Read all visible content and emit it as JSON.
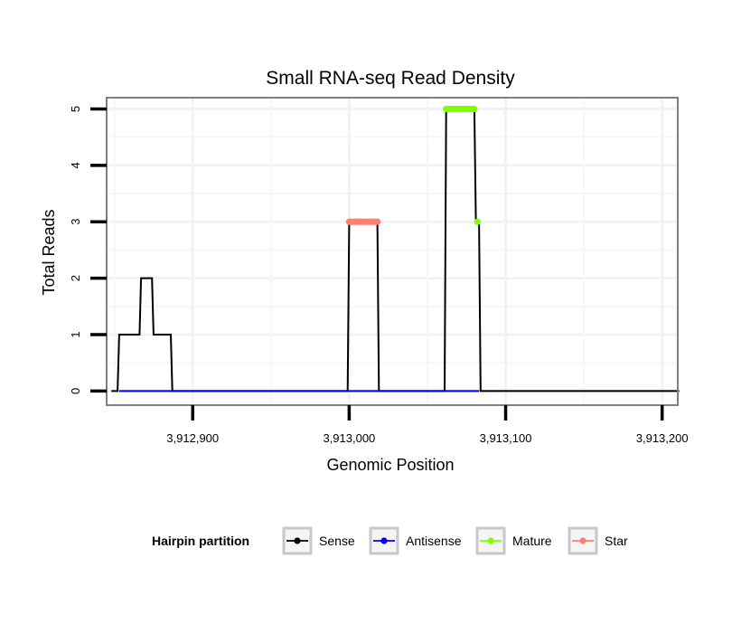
{
  "chart_data": {
    "type": "line",
    "title": "Small RNA-seq Read Density",
    "xlabel": "Genomic Position",
    "ylabel": "Total Reads",
    "xlim": [
      3912845,
      3913210
    ],
    "ylim": [
      -0.25,
      5.2
    ],
    "x_ticks": [
      3912900,
      3913000,
      3913100,
      3913200
    ],
    "x_tick_labels": [
      "3,912,900",
      "3,913,000",
      "3,913,100",
      "3,913,200"
    ],
    "y_ticks": [
      0,
      1,
      2,
      3,
      4,
      5
    ],
    "y_tick_labels": [
      "0",
      "1",
      "2",
      "3",
      "4",
      "5"
    ],
    "grid": true,
    "legend": {
      "title": "Hairpin partition",
      "position": "bottom",
      "entries": [
        {
          "name": "Sense",
          "color": "#000000"
        },
        {
          "name": "Antisense",
          "color": "#0000ff"
        },
        {
          "name": "Mature",
          "color": "#7fff00"
        },
        {
          "name": "Star",
          "color": "#fa8072"
        }
      ]
    },
    "series": [
      {
        "name": "Sense",
        "color": "#000000",
        "x": [
          3912848,
          3912852,
          3912853,
          3912866,
          3912867,
          3912874,
          3912875,
          3912886,
          3912887,
          3912999,
          3913000,
          3913018,
          3913019,
          3913061,
          3913062,
          3913080,
          3913081,
          3913083,
          3913084,
          3913211
        ],
        "y": [
          0,
          0,
          1,
          1,
          2,
          2,
          1,
          1,
          0,
          0,
          3,
          3,
          0,
          0,
          5,
          5,
          3,
          3,
          0,
          0
        ]
      },
      {
        "name": "Antisense",
        "color": "#0000ff",
        "x": [
          3912853,
          3912886,
          3913000,
          3913018,
          3913062,
          3913083
        ],
        "y": [
          0,
          0,
          0,
          0,
          0,
          0
        ]
      },
      {
        "name": "Mature",
        "color": "#7fff00",
        "x": [
          3913062,
          3913063,
          3913064,
          3913065,
          3913066,
          3913067,
          3913068,
          3913069,
          3913070,
          3913071,
          3913072,
          3913073,
          3913074,
          3913075,
          3913076,
          3913077,
          3913078,
          3913079,
          3913080,
          3913082
        ],
        "y": [
          5,
          5,
          5,
          5,
          5,
          5,
          5,
          5,
          5,
          5,
          5,
          5,
          5,
          5,
          5,
          5,
          5,
          5,
          5,
          3
        ]
      },
      {
        "name": "Star",
        "color": "#fa8072",
        "x": [
          3913000,
          3913001,
          3913002,
          3913003,
          3913004,
          3913005,
          3913006,
          3913007,
          3913008,
          3913009,
          3913010,
          3913011,
          3913012,
          3913013,
          3913014,
          3913015,
          3913016,
          3913017,
          3913018
        ],
        "y": [
          3,
          3,
          3,
          3,
          3,
          3,
          3,
          3,
          3,
          3,
          3,
          3,
          3,
          3,
          3,
          3,
          3,
          3,
          3
        ]
      }
    ]
  }
}
